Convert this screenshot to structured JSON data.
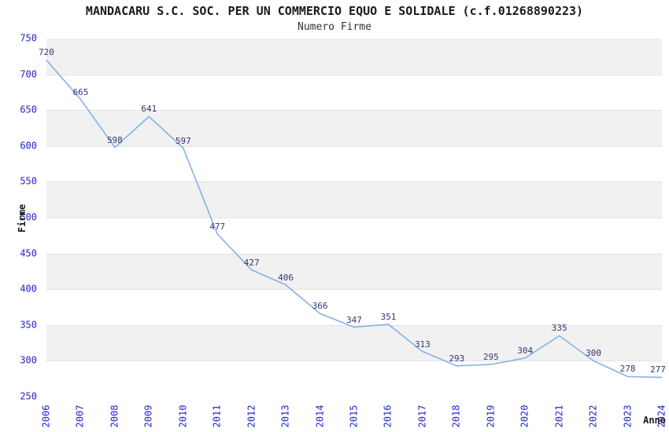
{
  "chart_data": {
    "type": "line",
    "title": "MANDACARU S.C. SOC. PER UN COMMERCIO EQUO E SOLIDALE (c.f.01268890223)",
    "subtitle": "Numero Firme",
    "xlabel": "Anno",
    "ylabel": "Firme",
    "x": [
      2006,
      2007,
      2008,
      2009,
      2010,
      2011,
      2012,
      2013,
      2014,
      2015,
      2016,
      2017,
      2018,
      2019,
      2020,
      2021,
      2022,
      2023,
      2024
    ],
    "series": [
      {
        "name": "Numero Firme",
        "values": [
          720,
          665,
          598,
          641,
          597,
          477,
          427,
          406,
          366,
          347,
          351,
          313,
          293,
          295,
          304,
          335,
          300,
          278,
          277
        ]
      }
    ],
    "ylim": [
      250,
      750
    ],
    "yticks": [
      750,
      700,
      650,
      600,
      550,
      500,
      450,
      400,
      350,
      300,
      250
    ],
    "data_labels_visible": true,
    "legend_position": "none",
    "grid": "alternating horizontal bands, 50-unit steps, gray band at top",
    "colors": {
      "line": "#84b1e7",
      "tick_label": "#2424cc",
      "point_label": "#363670",
      "band_gray": "#f1f1f1",
      "grid_line": "#e3e3e3",
      "plot_border": "#c6c6c6",
      "title_text": "#1a1a1a",
      "subtitle_text": "#333333"
    }
  }
}
